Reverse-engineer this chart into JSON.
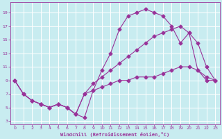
{
  "xlabel": "Windchill (Refroidissement éolien,°C)",
  "bg_color": "#c8ecf0",
  "line_color": "#993399",
  "grid_color": "#ffffff",
  "xlim": [
    -0.5,
    23.5
  ],
  "ylim": [
    2.5,
    20.5
  ],
  "xticks": [
    0,
    1,
    2,
    3,
    4,
    5,
    6,
    7,
    8,
    9,
    10,
    11,
    12,
    13,
    14,
    15,
    16,
    17,
    18,
    19,
    20,
    21,
    22,
    23
  ],
  "yticks": [
    3,
    5,
    7,
    9,
    11,
    13,
    15,
    17,
    19
  ],
  "line1_x": [
    0,
    1,
    2,
    3,
    4,
    5,
    6,
    7,
    8,
    9,
    10,
    11,
    12,
    13,
    14,
    15,
    16,
    17,
    18,
    19,
    20,
    21,
    22,
    23
  ],
  "line1_y": [
    9,
    7,
    6,
    5.5,
    5,
    5.5,
    5,
    4,
    3.5,
    7.5,
    10.5,
    13,
    16.5,
    18.5,
    19,
    19.5,
    19,
    18.5,
    17,
    14.5,
    16,
    10.5,
    9.5,
    9
  ],
  "line2_x": [
    0,
    1,
    2,
    3,
    4,
    5,
    6,
    7,
    8,
    9,
    10,
    11,
    12,
    13,
    14,
    15,
    16,
    17,
    18,
    19,
    20,
    21,
    22,
    23
  ],
  "line2_y": [
    9,
    7,
    6,
    5.5,
    5,
    5.5,
    5,
    4,
    7,
    8.5,
    9.5,
    10.5,
    11.5,
    12.5,
    13.5,
    14.5,
    15.5,
    16,
    16.5,
    17,
    16,
    14.5,
    11,
    9
  ],
  "line3_x": [
    0,
    1,
    2,
    3,
    4,
    5,
    6,
    7,
    8,
    9,
    10,
    11,
    12,
    13,
    14,
    15,
    16,
    17,
    18,
    19,
    20,
    21,
    22,
    23
  ],
  "line3_y": [
    9,
    7,
    6,
    5.5,
    5,
    5.5,
    5,
    4,
    7,
    7.5,
    8,
    8.5,
    9,
    9,
    9.5,
    9.5,
    9.5,
    10,
    10.5,
    11,
    11,
    10.5,
    9,
    9
  ],
  "markersize": 2.5,
  "linewidth": 0.8
}
